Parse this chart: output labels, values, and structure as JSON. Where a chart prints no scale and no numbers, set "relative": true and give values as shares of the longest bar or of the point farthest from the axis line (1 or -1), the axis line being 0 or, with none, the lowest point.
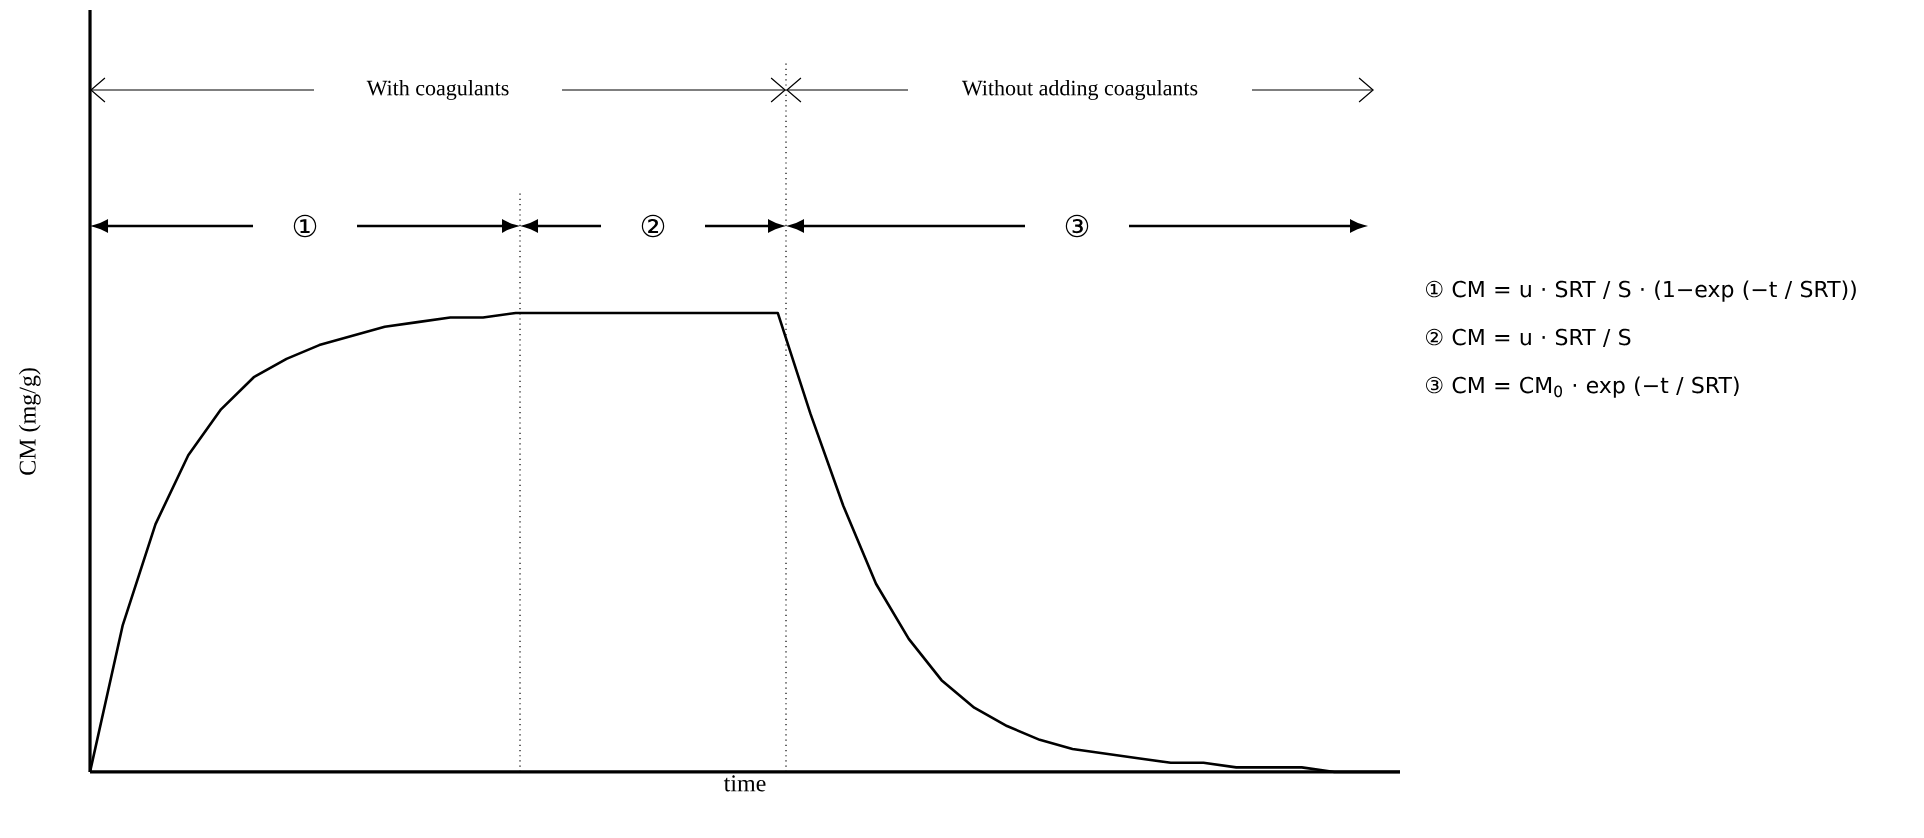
{
  "chart_data": {
    "type": "line",
    "relative": true,
    "xlabel": "time",
    "ylabel": "CM (mg/g)",
    "categories": [
      null,
      null,
      null,
      null,
      null,
      null,
      null,
      null,
      null,
      null,
      null,
      null,
      null,
      null,
      null,
      null,
      null,
      null,
      null,
      null,
      null,
      null,
      null,
      null,
      null,
      null,
      null,
      null,
      null,
      null,
      null,
      null,
      null,
      null,
      null,
      null,
      null,
      null,
      null,
      null,
      null
    ],
    "series": [
      {
        "color": "#000000",
        "values": [
          0,
          0.32,
          0.54,
          0.69,
          0.79,
          0.86,
          0.9,
          0.93,
          0.95,
          0.97,
          0.98,
          0.99,
          0.99,
          1,
          1,
          1,
          1,
          1,
          1,
          1,
          1,
          1,
          0.78,
          0.58,
          0.41,
          0.29,
          0.2,
          0.14,
          0.1,
          0.07,
          0.05,
          0.04,
          0.03,
          0.02,
          0.02,
          0.01,
          0.01,
          0.01,
          0,
          0,
          0
        ]
      }
    ],
    "annotations": [
      "With coagulants",
      "Without adding coagulants",
      "①",
      "②",
      "③",
      "① CM = u · SRT / S · (1−exp (−t / SRT))",
      "② CM = u · SRT / S",
      "③ CM = CM$_{0}$ · exp (−t / SRT)"
    ]
  }
}
